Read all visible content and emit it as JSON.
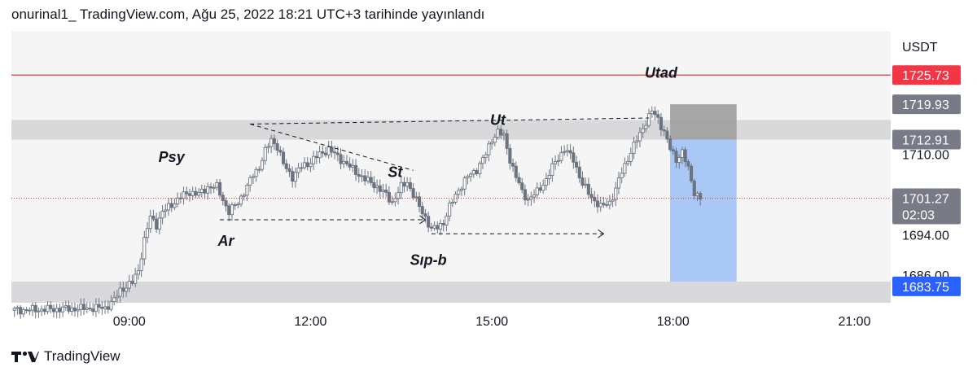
{
  "header": {
    "publish_text": "onurinal1_ TradingView.com, Ağu 25, 2022 18:21 UTC+3 tarihinde yayınlandı"
  },
  "footer": {
    "brand": "TradingView"
  },
  "colors": {
    "pane_bg": "#f5f5f5",
    "candle": "#6b7480",
    "red_line": "#e53935",
    "red_label": "#f23645",
    "gray_label": "#787b86",
    "blue_label": "#2962ff",
    "zone_gray": "#d9d9dc",
    "target_blue": "#8fb8f5",
    "stop_gray": "#9e9e9e"
  },
  "chart_data": {
    "type": "candlestick",
    "currency": "USDT",
    "x_ticks": [
      "09:00",
      "12:00",
      "15:00",
      "18:00",
      "21:00"
    ],
    "y_ticks": [
      1710.0,
      1694.0,
      1686.0
    ],
    "ylim": [
      1680.5,
      1734.5
    ],
    "xlim_hours": [
      7.05,
      21.6
    ],
    "price_labels": [
      {
        "value": 1725.73,
        "text": "1725.73",
        "style": "red"
      },
      {
        "value": 1719.93,
        "text": "1719.93",
        "style": "gray"
      },
      {
        "value": 1712.91,
        "text": "1712.91",
        "style": "gray"
      },
      {
        "value": 1701.27,
        "text": "1701.27",
        "sub": "02:03",
        "style": "gray"
      },
      {
        "value": 1683.75,
        "text": "1683.75",
        "style": "blue"
      }
    ],
    "horizontal_lines": [
      {
        "value": 1725.73,
        "style": "solid-red"
      },
      {
        "value": 1701.27,
        "style": "dotted-red"
      }
    ],
    "zones": [
      {
        "from": 1712.91,
        "to": 1716.8,
        "color": "gray",
        "x_from_h": 7.05,
        "x_to_h": 21.6
      },
      {
        "from": 1680.5,
        "to": 1684.7,
        "color": "gray",
        "x_from_h": 7.05,
        "x_to_h": 21.6
      },
      {
        "from": 1712.91,
        "to": 1719.93,
        "color": "stop",
        "x_from_h": 17.95,
        "x_to_h": 19.05
      },
      {
        "from": 1684.7,
        "to": 1712.91,
        "color": "target",
        "x_from_h": 17.95,
        "x_to_h": 19.05
      }
    ],
    "annotations": [
      {
        "text": "Psy",
        "hour": 9.7,
        "price": 1708.5
      },
      {
        "text": "Ar",
        "hour": 10.6,
        "price": 1691.8
      },
      {
        "text": "St",
        "hour": 13.4,
        "price": 1705.5
      },
      {
        "text": "Ut",
        "hour": 15.1,
        "price": 1715.8
      },
      {
        "text": "Sıp-b",
        "hour": 13.95,
        "price": 1688.0
      },
      {
        "text": "Utad",
        "hour": 17.8,
        "price": 1725.2
      }
    ],
    "trend_lines": [
      {
        "from": [
          11.0,
          1716.0
        ],
        "to": [
          13.7,
          1706.8
        ],
        "style": "dashed"
      },
      {
        "from": [
          11.0,
          1716.0
        ],
        "to": [
          17.6,
          1717.2
        ],
        "style": "dashed"
      },
      {
        "from": [
          10.5,
          1697.0
        ],
        "to": [
          13.9,
          1697.0
        ],
        "style": "dashed-arrow"
      },
      {
        "from": [
          14.0,
          1694.2
        ],
        "to": [
          16.85,
          1694.2
        ],
        "style": "dashed-arrow"
      }
    ],
    "price_path": [
      [
        7.05,
        1679.0
      ],
      [
        8.6,
        1679.5
      ],
      [
        8.75,
        1681.0
      ],
      [
        8.85,
        1683.0
      ],
      [
        9.05,
        1684.5
      ],
      [
        9.15,
        1687.0
      ],
      [
        9.25,
        1693.0
      ],
      [
        9.35,
        1697.5
      ],
      [
        9.45,
        1696.0
      ],
      [
        9.55,
        1698.5
      ],
      [
        9.7,
        1700.0
      ],
      [
        9.85,
        1701.5
      ],
      [
        10.0,
        1702.5
      ],
      [
        10.15,
        1702.0
      ],
      [
        10.3,
        1703.5
      ],
      [
        10.45,
        1703.5
      ],
      [
        10.55,
        1701.0
      ],
      [
        10.65,
        1698.5
      ],
      [
        10.8,
        1700.5
      ],
      [
        10.95,
        1703.5
      ],
      [
        11.05,
        1706.0
      ],
      [
        11.15,
        1707.5
      ],
      [
        11.25,
        1710.5
      ],
      [
        11.35,
        1713.0
      ],
      [
        11.45,
        1711.5
      ],
      [
        11.55,
        1708.0
      ],
      [
        11.7,
        1705.5
      ],
      [
        11.85,
        1707.5
      ],
      [
        12.0,
        1708.5
      ],
      [
        12.15,
        1710.0
      ],
      [
        12.3,
        1711.0
      ],
      [
        12.45,
        1709.5
      ],
      [
        12.6,
        1708.0
      ],
      [
        12.75,
        1706.5
      ],
      [
        12.9,
        1705.0
      ],
      [
        13.05,
        1704.0
      ],
      [
        13.2,
        1702.5
      ],
      [
        13.35,
        1700.5
      ],
      [
        13.5,
        1703.5
      ],
      [
        13.6,
        1704.5
      ],
      [
        13.7,
        1702.0
      ],
      [
        13.8,
        1699.5
      ],
      [
        13.9,
        1697.5
      ],
      [
        14.0,
        1695.0
      ],
      [
        14.1,
        1695.5
      ],
      [
        14.2,
        1696.5
      ],
      [
        14.3,
        1699.5
      ],
      [
        14.45,
        1703.0
      ],
      [
        14.6,
        1705.5
      ],
      [
        14.75,
        1707.0
      ],
      [
        14.9,
        1710.0
      ],
      [
        15.0,
        1713.0
      ],
      [
        15.1,
        1714.5
      ],
      [
        15.2,
        1713.5
      ],
      [
        15.3,
        1709.0
      ],
      [
        15.4,
        1705.5
      ],
      [
        15.5,
        1702.5
      ],
      [
        15.6,
        1701.0
      ],
      [
        15.75,
        1702.5
      ],
      [
        15.9,
        1705.0
      ],
      [
        16.05,
        1708.5
      ],
      [
        16.2,
        1711.0
      ],
      [
        16.35,
        1709.0
      ],
      [
        16.5,
        1704.0
      ],
      [
        16.65,
        1701.5
      ],
      [
        16.8,
        1699.5
      ],
      [
        16.95,
        1700.5
      ],
      [
        17.05,
        1703.0
      ],
      [
        17.15,
        1706.5
      ],
      [
        17.3,
        1710.5
      ],
      [
        17.45,
        1714.0
      ],
      [
        17.55,
        1716.5
      ],
      [
        17.65,
        1718.5
      ],
      [
        17.75,
        1717.0
      ],
      [
        17.85,
        1714.5
      ],
      [
        17.95,
        1711.0
      ],
      [
        18.05,
        1709.0
      ],
      [
        18.15,
        1710.5
      ],
      [
        18.25,
        1707.0
      ],
      [
        18.35,
        1702.5
      ],
      [
        18.45,
        1701.3
      ]
    ]
  }
}
